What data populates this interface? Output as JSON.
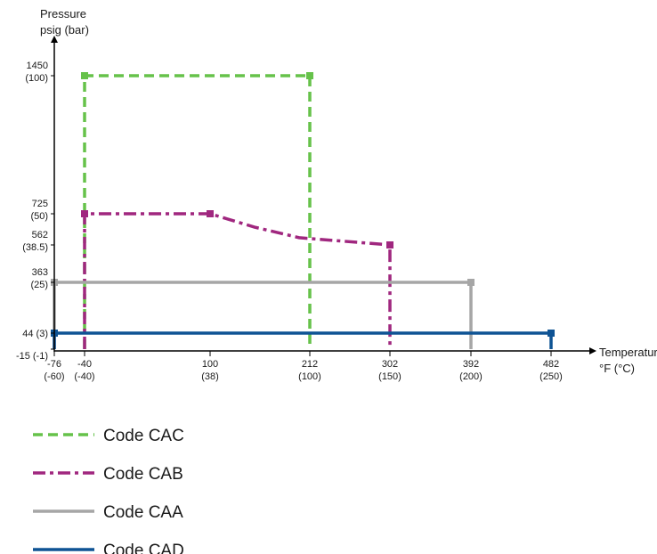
{
  "chart_data": {
    "type": "line",
    "y_axis_title": [
      "Pressure",
      "psig (bar)"
    ],
    "x_axis_title": [
      "Temperature",
      "°F (°C)"
    ],
    "x_ticks": [
      {
        "value": -76,
        "line1": "-76",
        "line2": "(-60)"
      },
      {
        "value": -40,
        "line1": "-40",
        "line2": "(-40)"
      },
      {
        "value": 100,
        "line1": "100",
        "line2": "(38)"
      },
      {
        "value": 212,
        "line1": "212",
        "line2": "(100)"
      },
      {
        "value": 302,
        "line1": "302",
        "line2": "(150)"
      },
      {
        "value": 392,
        "line1": "392",
        "line2": "(200)"
      },
      {
        "value": 482,
        "line1": "482",
        "line2": "(250)"
      }
    ],
    "y_ticks": [
      {
        "value": 1450,
        "line1": "1450",
        "line2": "(100)"
      },
      {
        "value": 725,
        "line1": "725",
        "line2": "(50)"
      },
      {
        "value": 562,
        "line1": "562",
        "line2": "(38.5)"
      },
      {
        "value": 363,
        "line1": "363",
        "line2": "(25)"
      },
      {
        "value": 44,
        "line1": "44 (3)",
        "line2": ""
      },
      {
        "value": -15,
        "line1": "-15  (-1)",
        "line2": ""
      }
    ],
    "series": [
      {
        "name": "Code CAC",
        "color": "#66c24a",
        "dash": "dashed",
        "points": [
          [
            -40,
            -15
          ],
          [
            -40,
            1450
          ],
          [
            212,
            1450
          ],
          [
            212,
            -15
          ]
        ],
        "markers": [
          [
            -40,
            1450
          ],
          [
            212,
            1450
          ]
        ]
      },
      {
        "name": "Code CAB",
        "color": "#a0277f",
        "dash": "dash-dot",
        "points": [
          [
            -40,
            -15
          ],
          [
            -40,
            725
          ],
          [
            100,
            725
          ],
          [
            150,
            655
          ],
          [
            200,
            600
          ],
          [
            302,
            562
          ],
          [
            302,
            -15
          ]
        ],
        "markers": [
          [
            -40,
            725
          ],
          [
            100,
            725
          ],
          [
            302,
            562
          ]
        ]
      },
      {
        "name": "Code CAA",
        "color": "#a6a6a6",
        "dash": "solid",
        "points": [
          [
            -76,
            -15
          ],
          [
            -76,
            363
          ],
          [
            392,
            363
          ],
          [
            392,
            -15
          ]
        ],
        "markers": [
          [
            -76,
            363
          ],
          [
            392,
            363
          ]
        ]
      },
      {
        "name": "Code CAD",
        "color": "#0e5394",
        "dash": "solid",
        "points": [
          [
            -76,
            -15
          ],
          [
            -76,
            44
          ],
          [
            482,
            44
          ],
          [
            482,
            -15
          ]
        ],
        "markers": [
          [
            -76,
            44
          ],
          [
            482,
            44
          ]
        ]
      }
    ]
  }
}
